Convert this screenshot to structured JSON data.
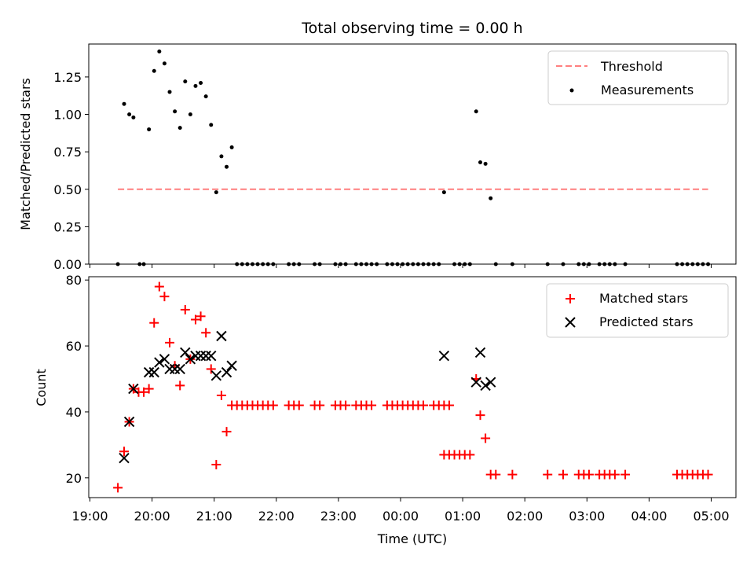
{
  "chart_data": [
    {
      "type": "line+scatter",
      "title": "Total observing time = 0.00 h",
      "ylabel": "Matched/Predicted stars",
      "xlabel": "",
      "ylim": [
        0,
        1.47
      ],
      "yticks": [
        "0.00",
        "0.25",
        "0.50",
        "0.75",
        "1.00",
        "1.25"
      ],
      "legend": {
        "placement": "top-right",
        "entries": [
          "Threshold",
          "Measurements"
        ]
      },
      "threshold": {
        "name": "Threshold",
        "value": 0.5,
        "x_start": "19:27",
        "x_end": "04:57",
        "color": "#ff7f7f"
      },
      "series": [
        {
          "name": "Measurements",
          "color": "#000000",
          "points": [
            [
              "19:27",
              0
            ],
            [
              "19:33",
              1.07
            ],
            [
              "19:38",
              1.0
            ],
            [
              "19:42",
              0.98
            ],
            [
              "19:48",
              0
            ],
            [
              "19:52",
              0
            ],
            [
              "19:57",
              0.9
            ],
            [
              "20:02",
              1.29
            ],
            [
              "20:07",
              1.42
            ],
            [
              "20:12",
              1.34
            ],
            [
              "20:17",
              1.15
            ],
            [
              "20:22",
              1.02
            ],
            [
              "20:27",
              0.91
            ],
            [
              "20:32",
              1.22
            ],
            [
              "20:37",
              1.0
            ],
            [
              "20:42",
              1.19
            ],
            [
              "20:47",
              1.21
            ],
            [
              "20:52",
              1.12
            ],
            [
              "20:57",
              0.93
            ],
            [
              "21:02",
              0.48
            ],
            [
              "21:07",
              0.72
            ],
            [
              "21:12",
              0.65
            ],
            [
              "21:17",
              0.78
            ],
            [
              "21:22",
              0
            ],
            [
              "21:27",
              0
            ],
            [
              "21:32",
              0
            ],
            [
              "21:37",
              0
            ],
            [
              "21:42",
              0
            ],
            [
              "21:47",
              0
            ],
            [
              "21:52",
              0
            ],
            [
              "21:57",
              0
            ],
            [
              "22:12",
              0
            ],
            [
              "22:17",
              0
            ],
            [
              "22:22",
              0
            ],
            [
              "22:37",
              0
            ],
            [
              "22:42",
              0
            ],
            [
              "22:57",
              0
            ],
            [
              "23:02",
              0
            ],
            [
              "23:07",
              0
            ],
            [
              "23:17",
              0
            ],
            [
              "23:22",
              0
            ],
            [
              "23:27",
              0
            ],
            [
              "23:32",
              0
            ],
            [
              "23:37",
              0
            ],
            [
              "23:47",
              0
            ],
            [
              "23:52",
              0
            ],
            [
              "23:57",
              0
            ],
            [
              "00:02",
              0
            ],
            [
              "00:07",
              0
            ],
            [
              "00:12",
              0
            ],
            [
              "00:17",
              0
            ],
            [
              "00:22",
              0
            ],
            [
              "00:27",
              0
            ],
            [
              "00:32",
              0
            ],
            [
              "00:37",
              0
            ],
            [
              "00:42",
              0.48
            ],
            [
              "00:52",
              0
            ],
            [
              "00:57",
              0
            ],
            [
              "01:02",
              0
            ],
            [
              "01:07",
              0
            ],
            [
              "01:13",
              1.02
            ],
            [
              "01:17",
              0.68
            ],
            [
              "01:22",
              0.67
            ],
            [
              "01:27",
              0.44
            ],
            [
              "01:32",
              0
            ],
            [
              "01:48",
              0
            ],
            [
              "02:22",
              0
            ],
            [
              "02:37",
              0
            ],
            [
              "02:52",
              0
            ],
            [
              "02:57",
              0
            ],
            [
              "03:02",
              0
            ],
            [
              "03:12",
              0
            ],
            [
              "03:17",
              0
            ],
            [
              "03:22",
              0
            ],
            [
              "03:27",
              0
            ],
            [
              "03:37",
              0
            ],
            [
              "04:27",
              0
            ],
            [
              "04:32",
              0
            ],
            [
              "04:37",
              0
            ],
            [
              "04:42",
              0
            ],
            [
              "04:47",
              0
            ],
            [
              "04:52",
              0
            ],
            [
              "04:57",
              0
            ]
          ]
        }
      ]
    },
    {
      "type": "scatter",
      "title": "",
      "xlabel": "Time (UTC)",
      "ylabel": "Count",
      "ylim": [
        14,
        81
      ],
      "yticks": [
        "20",
        "40",
        "60",
        "80"
      ],
      "xticks": [
        "19:00",
        "20:00",
        "21:00",
        "22:00",
        "23:00",
        "00:00",
        "01:00",
        "02:00",
        "03:00",
        "04:00",
        "05:00"
      ],
      "legend": {
        "placement": "top-right",
        "entries": [
          "Matched stars",
          "Predicted stars"
        ]
      },
      "series": [
        {
          "name": "Matched stars",
          "marker": "+",
          "color": "#ff0000",
          "points": [
            [
              "19:27",
              17
            ],
            [
              "19:33",
              28
            ],
            [
              "19:38",
              37
            ],
            [
              "19:42",
              47
            ],
            [
              "19:47",
              46
            ],
            [
              "19:52",
              46
            ],
            [
              "19:57",
              47
            ],
            [
              "20:02",
              67
            ],
            [
              "20:07",
              78
            ],
            [
              "20:12",
              75
            ],
            [
              "20:17",
              61
            ],
            [
              "20:22",
              54
            ],
            [
              "20:27",
              48
            ],
            [
              "20:32",
              71
            ],
            [
              "20:37",
              56
            ],
            [
              "20:42",
              68
            ],
            [
              "20:47",
              69
            ],
            [
              "20:52",
              64
            ],
            [
              "20:57",
              53
            ],
            [
              "21:02",
              24
            ],
            [
              "21:07",
              45
            ],
            [
              "21:12",
              34
            ],
            [
              "21:17",
              42
            ],
            [
              "21:22",
              42
            ],
            [
              "21:27",
              42
            ],
            [
              "21:32",
              42
            ],
            [
              "21:37",
              42
            ],
            [
              "21:42",
              42
            ],
            [
              "21:47",
              42
            ],
            [
              "21:52",
              42
            ],
            [
              "21:57",
              42
            ],
            [
              "22:12",
              42
            ],
            [
              "22:17",
              42
            ],
            [
              "22:22",
              42
            ],
            [
              "22:37",
              42
            ],
            [
              "22:42",
              42
            ],
            [
              "22:57",
              42
            ],
            [
              "23:02",
              42
            ],
            [
              "23:07",
              42
            ],
            [
              "23:17",
              42
            ],
            [
              "23:22",
              42
            ],
            [
              "23:27",
              42
            ],
            [
              "23:32",
              42
            ],
            [
              "23:47",
              42
            ],
            [
              "23:52",
              42
            ],
            [
              "23:57",
              42
            ],
            [
              "00:02",
              42
            ],
            [
              "00:07",
              42
            ],
            [
              "00:12",
              42
            ],
            [
              "00:17",
              42
            ],
            [
              "00:22",
              42
            ],
            [
              "00:32",
              42
            ],
            [
              "00:37",
              42
            ],
            [
              "00:42",
              42
            ],
            [
              "00:47",
              42
            ],
            [
              "00:42",
              27
            ],
            [
              "00:47",
              27
            ],
            [
              "00:52",
              27
            ],
            [
              "00:57",
              27
            ],
            [
              "01:02",
              27
            ],
            [
              "01:07",
              27
            ],
            [
              "01:13",
              50
            ],
            [
              "01:17",
              39
            ],
            [
              "01:22",
              32
            ],
            [
              "01:27",
              21
            ],
            [
              "01:32",
              21
            ],
            [
              "01:48",
              21
            ],
            [
              "02:22",
              21
            ],
            [
              "02:37",
              21
            ],
            [
              "02:52",
              21
            ],
            [
              "02:57",
              21
            ],
            [
              "03:02",
              21
            ],
            [
              "03:12",
              21
            ],
            [
              "03:17",
              21
            ],
            [
              "03:22",
              21
            ],
            [
              "03:27",
              21
            ],
            [
              "03:37",
              21
            ],
            [
              "04:27",
              21
            ],
            [
              "04:32",
              21
            ],
            [
              "04:37",
              21
            ],
            [
              "04:42",
              21
            ],
            [
              "04:47",
              21
            ],
            [
              "04:52",
              21
            ],
            [
              "04:57",
              21
            ]
          ]
        },
        {
          "name": "Predicted stars",
          "marker": "x",
          "color": "#000000",
          "points": [
            [
              "19:33",
              26
            ],
            [
              "19:38",
              37
            ],
            [
              "19:42",
              47
            ],
            [
              "19:57",
              52
            ],
            [
              "20:02",
              52
            ],
            [
              "20:07",
              55
            ],
            [
              "20:12",
              56
            ],
            [
              "20:17",
              53
            ],
            [
              "20:22",
              53
            ],
            [
              "20:27",
              53
            ],
            [
              "20:32",
              58
            ],
            [
              "20:37",
              56
            ],
            [
              "20:42",
              57
            ],
            [
              "20:47",
              57
            ],
            [
              "20:52",
              57
            ],
            [
              "20:57",
              57
            ],
            [
              "21:02",
              51
            ],
            [
              "21:07",
              63
            ],
            [
              "21:12",
              52
            ],
            [
              "21:17",
              54
            ],
            [
              "00:42",
              57
            ],
            [
              "01:13",
              49
            ],
            [
              "01:17",
              58
            ],
            [
              "01:22",
              48
            ],
            [
              "01:27",
              49
            ]
          ]
        }
      ]
    }
  ]
}
